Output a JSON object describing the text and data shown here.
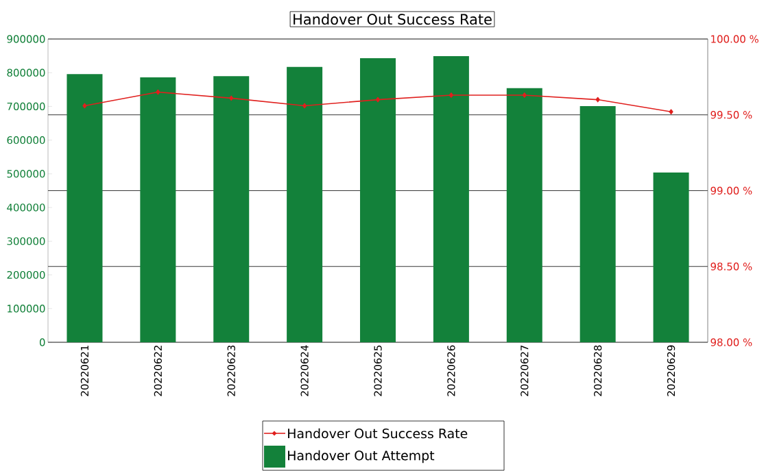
{
  "chart_data": {
    "type": "bar",
    "title": "Handover Out Success Rate",
    "categories": [
      "20220621",
      "20220622",
      "20220623",
      "20220624",
      "20220625",
      "20220626",
      "20220627",
      "20220628",
      "20220629"
    ],
    "series": [
      {
        "name": "Handover Out Success Rate",
        "type": "line",
        "axis": "y2",
        "color": "#e0201e",
        "marker": "diamond",
        "values": [
          99.56,
          99.65,
          99.61,
          99.56,
          99.6,
          99.63,
          99.63,
          99.6,
          99.52
        ]
      },
      {
        "name": "Handover Out Attempt",
        "color": "#13813a",
        "values": [
          796000,
          786000,
          790000,
          817000,
          843000,
          849000,
          754000,
          701000,
          504000
        ]
      }
    ],
    "ylim": [
      0,
      900000
    ],
    "yticks": [
      0,
      100000,
      200000,
      300000,
      400000,
      500000,
      600000,
      700000,
      800000,
      900000
    ],
    "y2lim": [
      98,
      100
    ],
    "y2ticks": [
      {
        "value": 98,
        "label": "98.00 %"
      },
      {
        "value": 98.5,
        "label": "98.50 %"
      },
      {
        "value": 99,
        "label": "99.00 %"
      },
      {
        "value": 99.5,
        "label": "99.50 %"
      },
      {
        "value": 100,
        "label": "100.00 %"
      }
    ],
    "grid": true,
    "legend": "bottom"
  }
}
